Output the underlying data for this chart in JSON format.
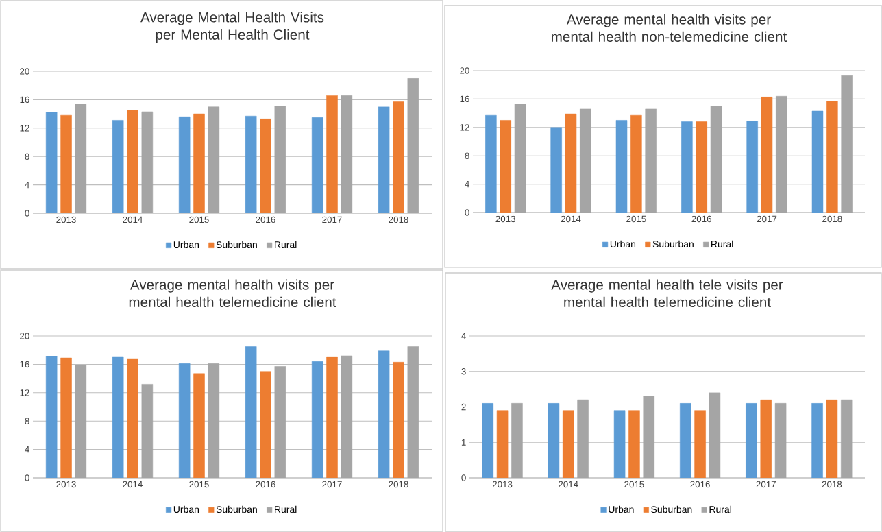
{
  "chart_data": [
    {
      "type": "bar",
      "title": "Average Mental Health Visits per Mental Health Client",
      "categories": [
        "2013",
        "2014",
        "2015",
        "2016",
        "2017",
        "2018"
      ],
      "series": [
        {
          "name": "Urban",
          "color": "#5b9bd5",
          "values": [
            14.2,
            13.1,
            13.6,
            13.7,
            13.5,
            15.0
          ]
        },
        {
          "name": "Suburban",
          "color": "#ed7d31",
          "values": [
            13.8,
            14.5,
            14.0,
            13.3,
            16.6,
            15.7
          ]
        },
        {
          "name": "Rural",
          "color": "#a5a5a5",
          "values": [
            15.4,
            14.3,
            15.0,
            15.1,
            16.6,
            19.0
          ]
        }
      ],
      "ylim": [
        0,
        20
      ],
      "yticks": [
        0,
        4,
        8,
        12,
        16,
        20
      ],
      "grid": "y",
      "legend": "bottom"
    },
    {
      "type": "bar",
      "title": "Average mental health visits per mental health non-telemedicine client",
      "categories": [
        "2013",
        "2014",
        "2015",
        "2016",
        "2017",
        "2018"
      ],
      "series": [
        {
          "name": "Urban",
          "color": "#5b9bd5",
          "values": [
            13.7,
            12.0,
            13.0,
            12.8,
            12.9,
            14.3
          ]
        },
        {
          "name": "Suburban",
          "color": "#ed7d31",
          "values": [
            13.0,
            13.9,
            13.7,
            12.8,
            16.3,
            15.7
          ]
        },
        {
          "name": "Rural",
          "color": "#a5a5a5",
          "values": [
            15.3,
            14.6,
            14.6,
            15.0,
            16.4,
            19.3
          ]
        }
      ],
      "ylim": [
        0,
        20
      ],
      "yticks": [
        0,
        4,
        8,
        12,
        16,
        20
      ],
      "grid": "y",
      "legend": "bottom"
    },
    {
      "type": "bar",
      "title": "Average mental health visits per mental health telemedicine client",
      "categories": [
        "2013",
        "2014",
        "2015",
        "2016",
        "2017",
        "2018"
      ],
      "series": [
        {
          "name": "Urban",
          "color": "#5b9bd5",
          "values": [
            17.1,
            17.0,
            16.1,
            18.5,
            16.4,
            17.9
          ]
        },
        {
          "name": "Suburban",
          "color": "#ed7d31",
          "values": [
            16.9,
            16.8,
            14.7,
            15.0,
            17.0,
            16.3
          ]
        },
        {
          "name": "Rural",
          "color": "#a5a5a5",
          "values": [
            15.9,
            13.2,
            16.1,
            15.7,
            17.2,
            18.5
          ]
        }
      ],
      "ylim": [
        0,
        20
      ],
      "yticks": [
        0,
        4,
        8,
        12,
        16,
        20
      ],
      "grid": "y",
      "legend": "bottom"
    },
    {
      "type": "bar",
      "title": "Average mental health tele visits per mental health telemedicine client",
      "categories": [
        "2013",
        "2014",
        "2015",
        "2016",
        "2017",
        "2018"
      ],
      "series": [
        {
          "name": "Urban",
          "color": "#5b9bd5",
          "values": [
            2.1,
            2.1,
            1.9,
            2.1,
            2.1,
            2.1
          ]
        },
        {
          "name": "Suburban",
          "color": "#ed7d31",
          "values": [
            1.9,
            1.9,
            1.9,
            1.9,
            2.2,
            2.2
          ]
        },
        {
          "name": "Rural",
          "color": "#a5a5a5",
          "values": [
            2.1,
            2.2,
            2.3,
            2.4,
            2.1,
            2.2
          ]
        }
      ],
      "ylim": [
        0,
        4
      ],
      "yticks": [
        0,
        1,
        2,
        3,
        4
      ],
      "grid": "y",
      "legend": "bottom"
    }
  ]
}
